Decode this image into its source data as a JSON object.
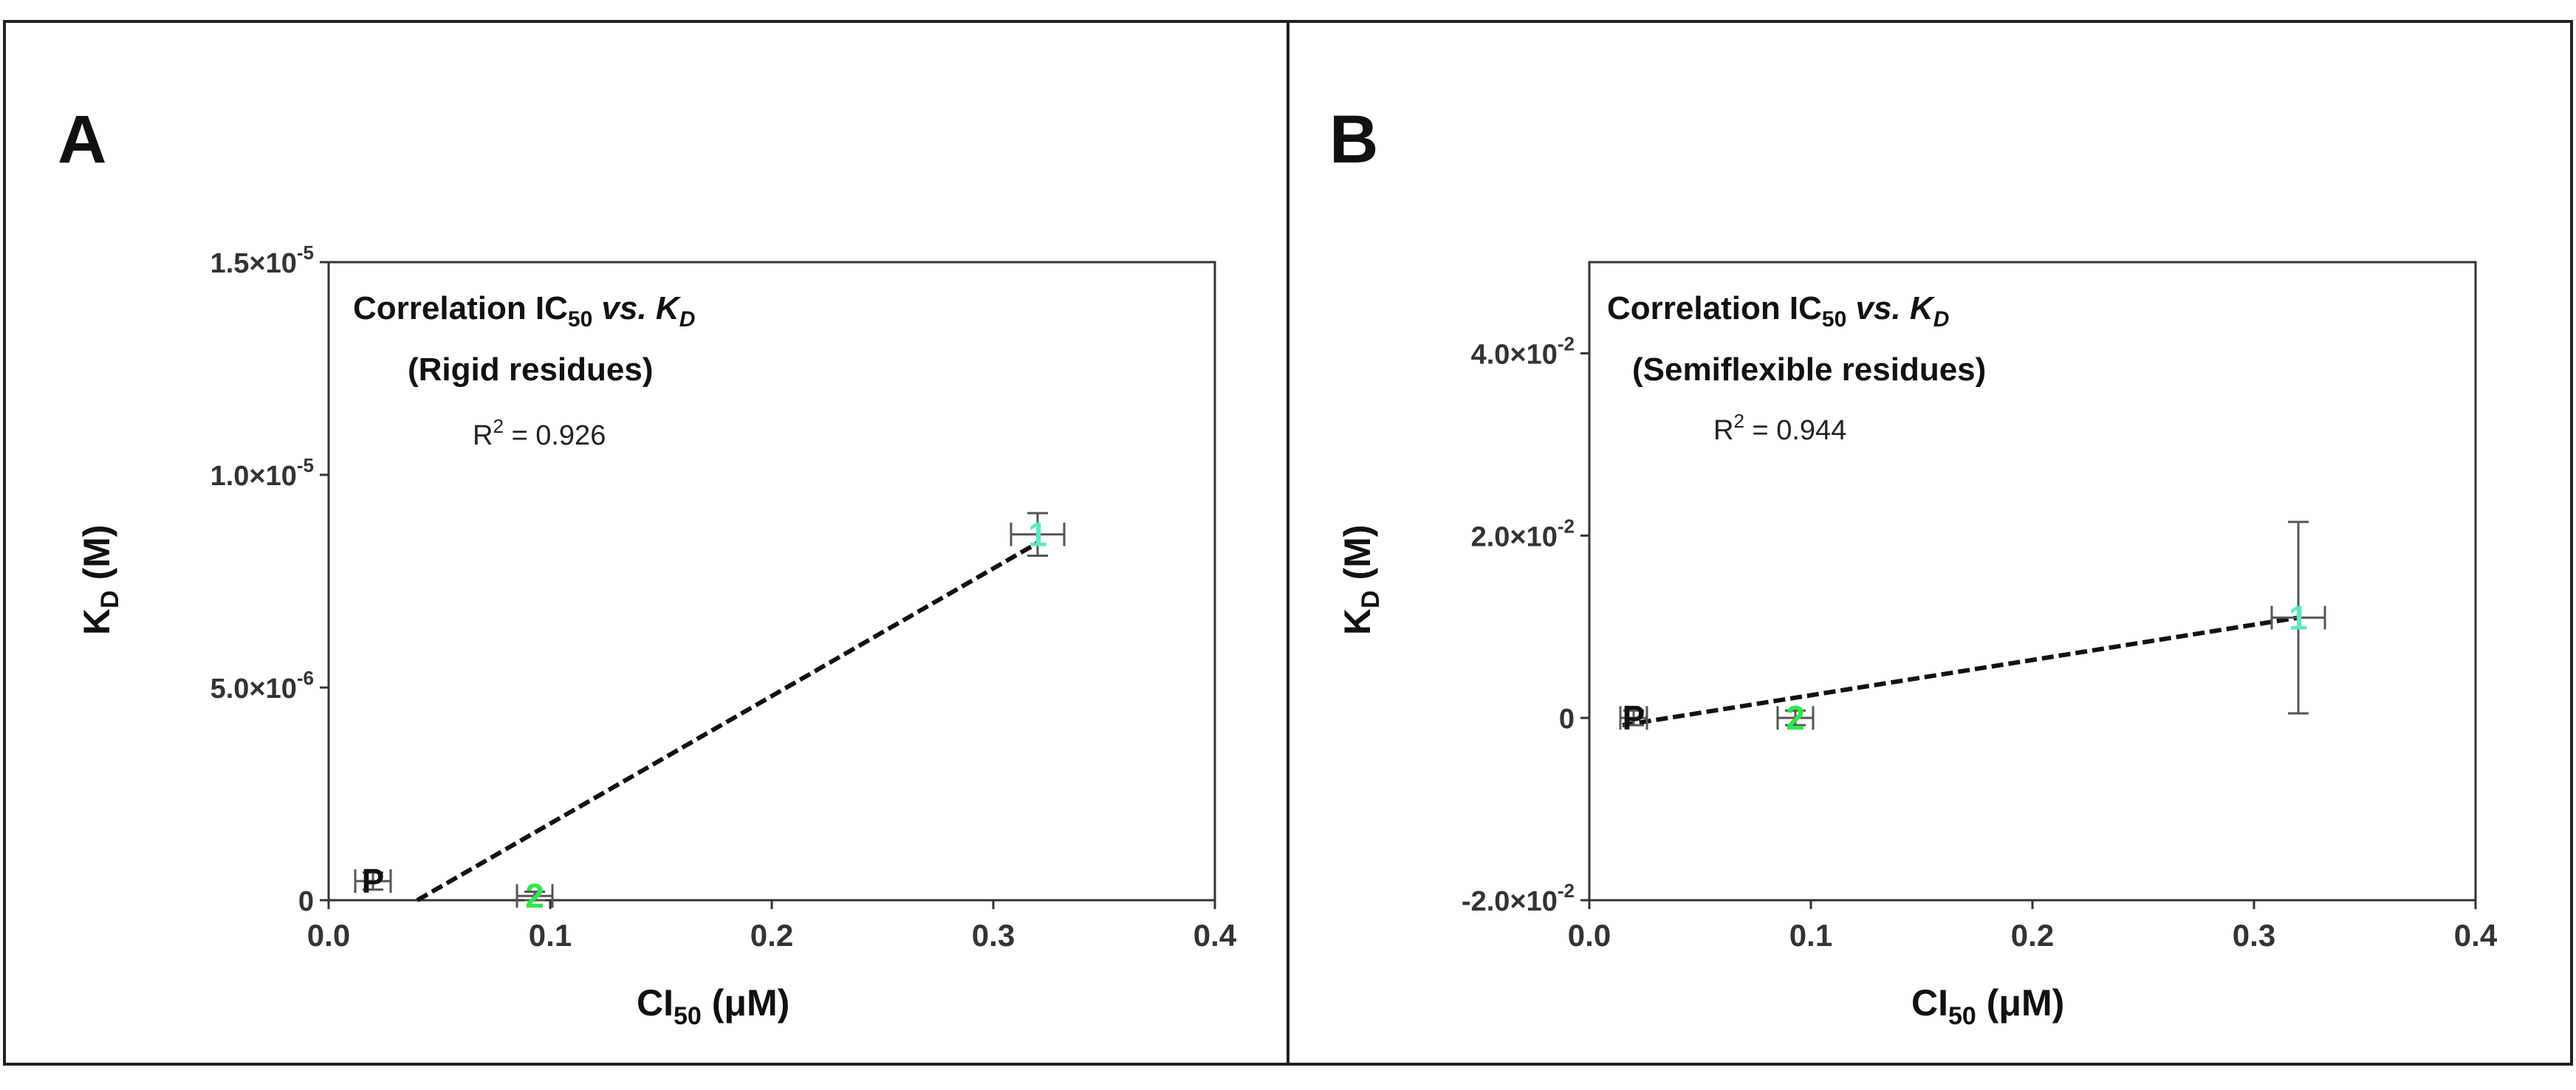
{
  "chart_data": [
    {
      "panel_label": "A",
      "type": "scatter",
      "title_line1_prefix": "Correlation IC",
      "title_line1_sub": "50",
      "title_line1_vs": " vs. ",
      "title_line1_kd": "K",
      "title_line1_kd_sub": "D",
      "title_line2": "(Rigid residues)",
      "r2_prefix": "R",
      "r2_sup": "2",
      "r2_suffix": " = 0.926",
      "xlabel_main": "CI",
      "xlabel_sub": "50",
      "xlabel_unit": " (μM)",
      "ylabel_main": "K",
      "ylabel_sub": "D",
      "ylabel_unit": " (M)",
      "xlim": [
        0.0,
        0.4
      ],
      "ylim": [
        0,
        1.5e-05
      ],
      "xticks": [
        0.0,
        0.1,
        0.2,
        0.3,
        0.4
      ],
      "xtick_labels": [
        "0.0",
        "0.1",
        "0.2",
        "0.3",
        "0.4"
      ],
      "yticks": [
        {
          "value": 0,
          "mant": "0",
          "exp": ""
        },
        {
          "value": 5e-06,
          "mant": "5.0×10",
          "exp": "-6"
        },
        {
          "value": 1e-05,
          "mant": "1.0×10",
          "exp": "-5"
        },
        {
          "value": 1.5e-05,
          "mant": "1.5×10",
          "exp": "-5"
        }
      ],
      "points": [
        {
          "label": "P",
          "x": 0.02,
          "y": 4.5e-07,
          "xerr": 0.008,
          "yerr": 2e-07,
          "color": "#111111"
        },
        {
          "label": "2",
          "x": 0.093,
          "y": 1e-07,
          "xerr": 0.008,
          "yerr": 1e-07,
          "color": "#2ee84a"
        },
        {
          "label": "1",
          "x": 0.32,
          "y": 8.6e-06,
          "xerr": 0.012,
          "yerr": 5e-07,
          "color": "#5fe6c3"
        }
      ],
      "fit_line": {
        "x": [
          0.04,
          0.32
        ],
        "y": [
          0,
          8.4e-06
        ]
      }
    },
    {
      "panel_label": "B",
      "type": "scatter",
      "title_line1_prefix": "Correlation IC",
      "title_line1_sub": "50",
      "title_line1_vs": " vs. ",
      "title_line1_kd": "K",
      "title_line1_kd_sub": "D",
      "title_line2": "(Semiflexible residues)",
      "r2_prefix": "R",
      "r2_sup": "2",
      "r2_suffix": " = 0.944",
      "xlabel_main": "CI",
      "xlabel_sub": "50",
      "xlabel_unit": " (μM)",
      "ylabel_main": "K",
      "ylabel_sub": "D",
      "ylabel_unit": " (M)",
      "xlim": [
        0.0,
        0.4
      ],
      "ylim": [
        -0.02,
        0.05
      ],
      "xticks": [
        0.0,
        0.1,
        0.2,
        0.3,
        0.4
      ],
      "xtick_labels": [
        "0.0",
        "0.1",
        "0.2",
        "0.3",
        "0.4"
      ],
      "yticks": [
        {
          "value": -0.02,
          "mant": "-2.0×10",
          "exp": "-2"
        },
        {
          "value": 0,
          "mant": "0",
          "exp": ""
        },
        {
          "value": 0.02,
          "mant": "2.0×10",
          "exp": "-2"
        },
        {
          "value": 0.04,
          "mant": "4.0×10",
          "exp": "-2"
        }
      ],
      "points": [
        {
          "label": "P",
          "x": 0.02,
          "y": 0.0,
          "xerr": 0.006,
          "yerr": 0.0008,
          "color": "#111111"
        },
        {
          "label": "2",
          "x": 0.093,
          "y": 0.0,
          "xerr": 0.008,
          "yerr": 0.0008,
          "color": "#2ee84a"
        },
        {
          "label": "1",
          "x": 0.32,
          "y": 0.011,
          "xerr": 0.012,
          "yerr": 0.0105,
          "color": "#5fe6c3"
        }
      ],
      "fit_line": {
        "x": [
          0.015,
          0.32
        ],
        "y": [
          -0.0008,
          0.011
        ]
      }
    }
  ]
}
